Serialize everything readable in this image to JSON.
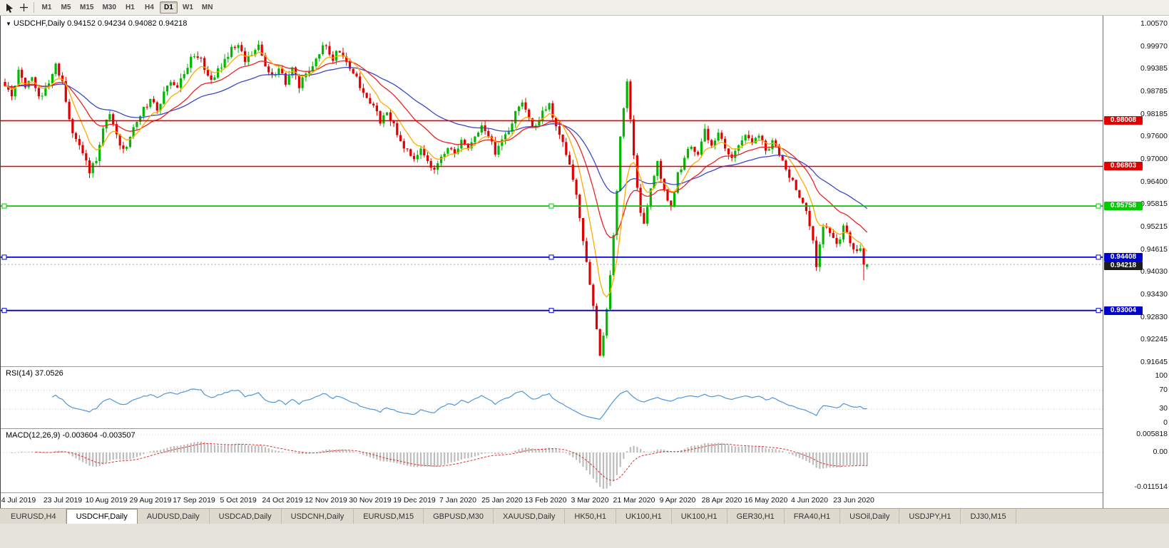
{
  "toolbar": {
    "timeframes": [
      "M1",
      "M5",
      "M15",
      "M30",
      "H1",
      "H4",
      "D1",
      "W1",
      "MN"
    ],
    "active_timeframe": "D1"
  },
  "chart": {
    "title_line": "USDCHF,Daily 0.94152 0.94234 0.94082 0.94218",
    "symbol": "USDCHF",
    "period": "Daily"
  },
  "price_axis": {
    "labels": [
      "1.00570",
      "0.99970",
      "0.99385",
      "0.98785",
      "0.98185",
      "0.97600",
      "0.97000",
      "0.96400",
      "0.95815",
      "0.95215",
      "0.94615",
      "0.94030",
      "0.93430",
      "0.92830",
      "0.92245",
      "0.91645"
    ]
  },
  "rsi": {
    "name": "RSI(14)",
    "value": "37.0526",
    "axis_labels": [
      "100",
      "70",
      "30",
      "0"
    ],
    "axis_values": [
      100,
      70,
      30,
      0
    ],
    "levels": [
      70,
      30
    ]
  },
  "macd": {
    "name": "MACD(12,26,9)",
    "values": "-0.003604 -0.003507",
    "axis_labels": [
      "0.005818",
      "0.00",
      "-0.011514"
    ]
  },
  "tabs": [
    {
      "label": "EURUSD,H4",
      "active": false
    },
    {
      "label": "USDCHF,Daily",
      "active": true
    },
    {
      "label": "AUDUSD,Daily",
      "active": false
    },
    {
      "label": "USDCAD,Daily",
      "active": false
    },
    {
      "label": "USDCNH,Daily",
      "active": false
    },
    {
      "label": "EURUSD,M15",
      "active": false
    },
    {
      "label": "GBPUSD,M30",
      "active": false
    },
    {
      "label": "XAUUSD,Daily",
      "active": false
    },
    {
      "label": "HK50,H1",
      "active": false
    },
    {
      "label": "UK100,H1",
      "active": false
    },
    {
      "label": "UK100,H1",
      "active": false
    },
    {
      "label": "GER30,H1",
      "active": false
    },
    {
      "label": "FRA40,H1",
      "active": false
    },
    {
      "label": "USOil,Daily",
      "active": false
    },
    {
      "label": "USDJPY,H1",
      "active": false
    },
    {
      "label": "DJ30,M15",
      "active": false
    }
  ],
  "chart_data": {
    "type": "candlestick",
    "symbol": "USDCHF",
    "timeframe": "Daily",
    "last_ohlc": {
      "open": 0.94152,
      "high": 0.94234,
      "low": 0.94082,
      "close": 0.94218
    },
    "current_price": {
      "value": 0.94218,
      "label": "0.94218"
    },
    "y_range": [
      0.91645,
      1.0057
    ],
    "num_candles": 256,
    "noise": 0.001,
    "wick": 0.0013,
    "long_wick": {
      "index": 254,
      "low": 0.938
    },
    "price_anchors": [
      [
        0,
        0.9895
      ],
      [
        2,
        0.987
      ],
      [
        4,
        0.9935
      ],
      [
        6,
        0.9885
      ],
      [
        8,
        0.9915
      ],
      [
        10,
        0.986
      ],
      [
        13,
        0.989
      ],
      [
        15,
        0.9945
      ],
      [
        17,
        0.9905
      ],
      [
        19,
        0.98
      ],
      [
        21,
        0.9745
      ],
      [
        23,
        0.972
      ],
      [
        25,
        0.966
      ],
      [
        27,
        0.97
      ],
      [
        29,
        0.978
      ],
      [
        31,
        0.982
      ],
      [
        33,
        0.976
      ],
      [
        35,
        0.972
      ],
      [
        37,
        0.975
      ],
      [
        39,
        0.98
      ],
      [
        41,
        0.983
      ],
      [
        43,
        0.9855
      ],
      [
        45,
        0.983
      ],
      [
        47,
        0.987
      ],
      [
        49,
        0.991
      ],
      [
        51,
        0.988
      ],
      [
        53,
        0.993
      ],
      [
        55,
        0.996
      ],
      [
        57,
        0.9975
      ],
      [
        59,
        0.994
      ],
      [
        61,
        0.9905
      ],
      [
        63,
        0.9935
      ],
      [
        65,
        0.996
      ],
      [
        67,
        0.999
      ],
      [
        69,
        1.0
      ],
      [
        71,
        0.995
      ],
      [
        73,
        0.9975
      ],
      [
        75,
        0.9995
      ],
      [
        77,
        0.995
      ],
      [
        79,
        0.9915
      ],
      [
        81,
        0.9945
      ],
      [
        83,
        0.9905
      ],
      [
        85,
        0.9935
      ],
      [
        87,
        0.989
      ],
      [
        89,
        0.992
      ],
      [
        91,
        0.995
      ],
      [
        93,
        0.9985
      ],
      [
        95,
        1.0
      ],
      [
        97,
        0.9965
      ],
      [
        99,
        0.9985
      ],
      [
        101,
        0.995
      ],
      [
        103,
        0.992
      ],
      [
        105,
        0.9895
      ],
      [
        107,
        0.987
      ],
      [
        109,
        0.984
      ],
      [
        111,
        0.98
      ],
      [
        113,
        0.9825
      ],
      [
        115,
        0.979
      ],
      [
        117,
        0.975
      ],
      [
        119,
        0.972
      ],
      [
        121,
        0.97
      ],
      [
        123,
        0.973
      ],
      [
        125,
        0.969
      ],
      [
        127,
        0.9665
      ],
      [
        129,
        0.97
      ],
      [
        131,
        0.973
      ],
      [
        133,
        0.971
      ],
      [
        135,
        0.9745
      ],
      [
        137,
        0.972
      ],
      [
        139,
        0.976
      ],
      [
        141,
        0.979
      ],
      [
        143,
        0.9755
      ],
      [
        145,
        0.972
      ],
      [
        147,
        0.9745
      ],
      [
        149,
        0.978
      ],
      [
        151,
        0.982
      ],
      [
        153,
        0.984
      ],
      [
        155,
        0.981
      ],
      [
        157,
        0.978
      ],
      [
        159,
        0.982
      ],
      [
        161,
        0.984
      ],
      [
        163,
        0.979
      ],
      [
        165,
        0.974
      ],
      [
        167,
        0.968
      ],
      [
        169,
        0.96
      ],
      [
        171,
        0.948
      ],
      [
        173,
        0.936
      ],
      [
        175,
        0.925
      ],
      [
        176,
        0.918
      ],
      [
        178,
        0.93
      ],
      [
        180,
        0.95
      ],
      [
        182,
        0.975
      ],
      [
        184,
        0.99
      ],
      [
        186,
        0.97
      ],
      [
        188,
        0.955
      ],
      [
        189,
        0.952
      ],
      [
        191,
        0.963
      ],
      [
        193,
        0.969
      ],
      [
        195,
        0.962
      ],
      [
        197,
        0.9575
      ],
      [
        199,
        0.966
      ],
      [
        201,
        0.97
      ],
      [
        203,
        0.974
      ],
      [
        205,
        0.971
      ],
      [
        207,
        0.977
      ],
      [
        209,
        0.974
      ],
      [
        211,
        0.977
      ],
      [
        213,
        0.973
      ],
      [
        215,
        0.97
      ],
      [
        217,
        0.9745
      ],
      [
        219,
        0.977
      ],
      [
        221,
        0.974
      ],
      [
        223,
        0.976
      ],
      [
        225,
        0.972
      ],
      [
        227,
        0.9745
      ],
      [
        229,
        0.9715
      ],
      [
        231,
        0.968
      ],
      [
        233,
        0.964
      ],
      [
        235,
        0.96
      ],
      [
        237,
        0.956
      ],
      [
        239,
        0.948
      ],
      [
        240,
        0.942
      ],
      [
        242,
        0.953
      ],
      [
        244,
        0.95
      ],
      [
        246,
        0.947
      ],
      [
        248,
        0.952
      ],
      [
        250,
        0.948
      ],
      [
        252,
        0.9455
      ],
      [
        253,
        0.947
      ],
      [
        254,
        0.942
      ],
      [
        255,
        0.94218
      ]
    ],
    "moving_averages": [
      {
        "name": "slow",
        "period": 45,
        "color": "#3b48c8"
      },
      {
        "name": "medium",
        "period": 21,
        "color": "#ee2222"
      },
      {
        "name": "fast",
        "period": 8,
        "color": "#ffaa00"
      }
    ],
    "horizontal_lines": [
      {
        "price": 0.98008,
        "label": "0.98008",
        "color": "#e00000",
        "width": 1.6,
        "handles": false
      },
      {
        "price": 0.96803,
        "label": "0.96803",
        "color": "#e00000",
        "width": 1.4,
        "handles": false
      },
      {
        "price": 0.95758,
        "label": "0.95758",
        "color": "#00cc00",
        "width": 1.8,
        "handles": true
      },
      {
        "price": 0.94408,
        "label": "0.94408",
        "color": "#0000cc",
        "width": 1.8,
        "handles": true
      },
      {
        "price": 0.93004,
        "label": "0.93004",
        "color": "#0000cc",
        "width": 1.8,
        "handles": true
      }
    ],
    "colors": {
      "up": "#00b800",
      "down": "#e00000",
      "rsi_line": "#4f96d8",
      "rsi_grid": "#c0c0c0",
      "macd_hist": "#bdbdbd",
      "macd_signal": "#e03030",
      "current_price_line": "#a8a8a8",
      "current_price_box": "#1c1c1c"
    },
    "x_labels": [
      "4 Jul 2019",
      "23 Jul 2019",
      "10 Aug 2019",
      "29 Aug 2019",
      "17 Sep 2019",
      "5 Oct 2019",
      "24 Oct 2019",
      "12 Nov 2019",
      "30 Nov 2019",
      "19 Dec 2019",
      "7 Jan 2020",
      "25 Jan 2020",
      "13 Feb 2020",
      "3 Mar 2020",
      "21 Mar 2020",
      "9 Apr 2020",
      "28 Apr 2020",
      "16 May 2020",
      "4 Jun 2020",
      "23 Jun 2020"
    ]
  }
}
